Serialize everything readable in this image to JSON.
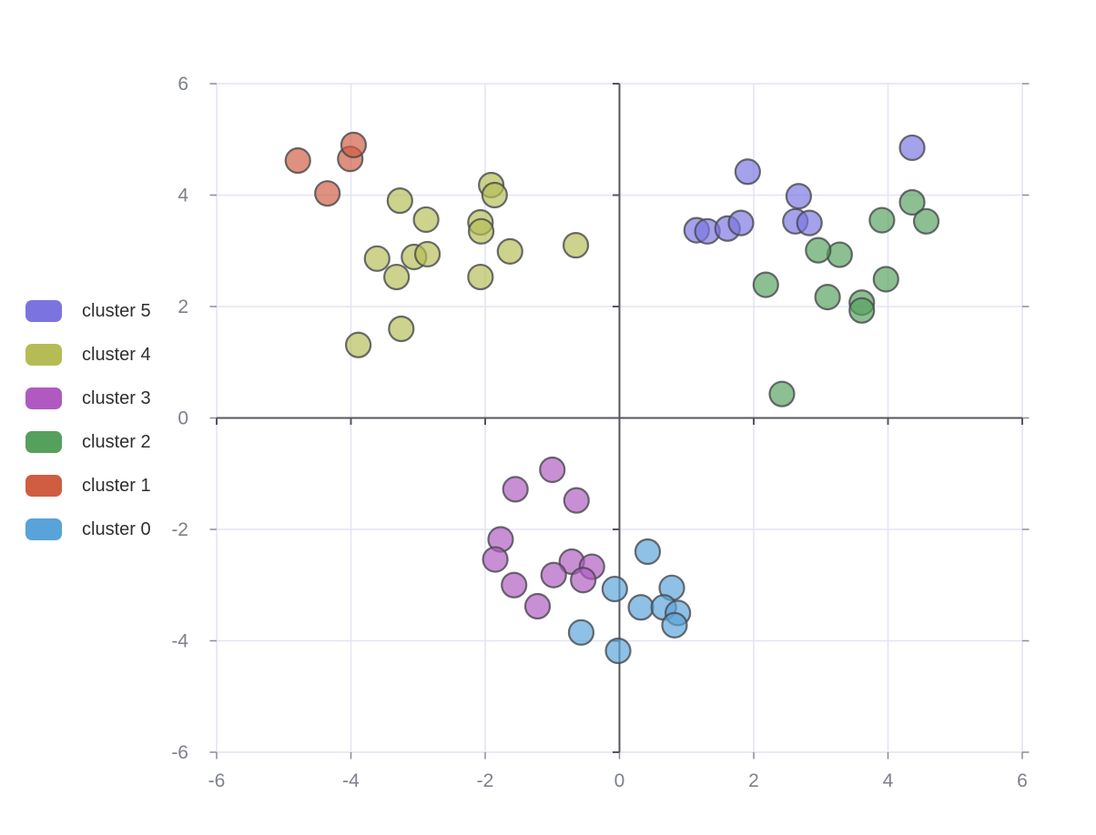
{
  "chart_data": {
    "type": "scatter",
    "title": "",
    "xlabel": "",
    "ylabel": "",
    "xlim": [
      -6,
      6
    ],
    "ylim": [
      -6,
      6
    ],
    "xticks": [
      -6,
      -4,
      -2,
      0,
      2,
      4,
      6
    ],
    "yticks": [
      -6,
      -4,
      -2,
      0,
      2,
      4,
      6
    ],
    "grid": true,
    "legend_position": "left",
    "series": [
      {
        "name": "cluster 5",
        "color": "#7b74e0",
        "points": [
          [
            1.15,
            3.37
          ],
          [
            1.31,
            3.35
          ],
          [
            1.61,
            3.4
          ],
          [
            1.81,
            3.5
          ],
          [
            1.91,
            4.42
          ],
          [
            2.62,
            3.53
          ],
          [
            2.67,
            3.98
          ],
          [
            2.83,
            3.5
          ],
          [
            4.36,
            4.85
          ]
        ]
      },
      {
        "name": "cluster 4",
        "color": "#b5bc55",
        "points": [
          [
            -3.89,
            1.31
          ],
          [
            -3.25,
            1.6
          ],
          [
            -3.61,
            2.86
          ],
          [
            -3.32,
            2.53
          ],
          [
            -3.06,
            2.89
          ],
          [
            -2.86,
            2.94
          ],
          [
            -2.07,
            2.53
          ],
          [
            -1.63,
            2.99
          ],
          [
            -0.65,
            3.1
          ],
          [
            -2.07,
            3.51
          ],
          [
            -2.06,
            3.35
          ],
          [
            -2.88,
            3.56
          ],
          [
            -3.27,
            3.9
          ],
          [
            -1.91,
            4.18
          ],
          [
            -1.86,
            4.0
          ]
        ]
      },
      {
        "name": "cluster 3",
        "color": "#b05ac1",
        "points": [
          [
            -1.0,
            -0.93
          ],
          [
            -1.55,
            -1.28
          ],
          [
            -0.64,
            -1.48
          ],
          [
            -1.77,
            -2.18
          ],
          [
            -1.85,
            -2.54
          ],
          [
            -1.57,
            -3.0
          ],
          [
            -1.22,
            -3.38
          ],
          [
            -0.71,
            -2.58
          ],
          [
            -0.41,
            -2.67
          ],
          [
            -0.98,
            -2.82
          ],
          [
            -0.54,
            -2.91
          ]
        ]
      },
      {
        "name": "cluster 2",
        "color": "#55a05d",
        "points": [
          [
            2.42,
            0.43
          ],
          [
            2.18,
            2.39
          ],
          [
            3.1,
            2.17
          ],
          [
            3.61,
            2.07
          ],
          [
            3.61,
            1.93
          ],
          [
            3.97,
            2.49
          ],
          [
            3.28,
            2.93
          ],
          [
            2.96,
            3.01
          ],
          [
            3.91,
            3.55
          ],
          [
            4.36,
            3.87
          ],
          [
            4.57,
            3.53
          ]
        ]
      },
      {
        "name": "cluster 1",
        "color": "#d05c41",
        "points": [
          [
            -4.79,
            4.62
          ],
          [
            -4.01,
            4.65
          ],
          [
            -3.96,
            4.9
          ],
          [
            -4.35,
            4.03
          ]
        ]
      },
      {
        "name": "cluster 0",
        "color": "#58a3d9",
        "points": [
          [
            0.42,
            -2.4
          ],
          [
            -0.07,
            -3.07
          ],
          [
            0.78,
            -3.05
          ],
          [
            0.32,
            -3.4
          ],
          [
            0.66,
            -3.4
          ],
          [
            0.87,
            -3.5
          ],
          [
            0.82,
            -3.72
          ],
          [
            -0.57,
            -3.85
          ],
          [
            -0.02,
            -4.18
          ]
        ]
      }
    ],
    "style": {
      "grid_color": "#e2e4f1",
      "edge_tick_color": "#8a8d96",
      "zero_axis_color": "#54575d",
      "tick_label_color": "#7d818a",
      "legend_text_color": "#2f2f31",
      "marker_stroke": "#47484c",
      "marker_radius": 13.5,
      "marker_fill_opacity": 0.68,
      "marker_stroke_opacity": 0.8,
      "marker_stroke_width": 2.2,
      "tick_label_size": 21
    }
  }
}
